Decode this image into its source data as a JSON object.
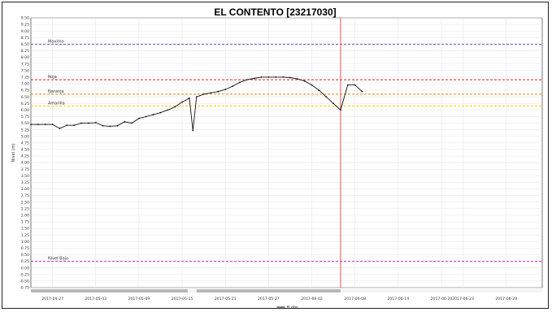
{
  "chart_data": {
    "type": "line",
    "title": "EL CONTENTO [23217030]",
    "ylabel": "Nivel (m)",
    "xlabel": "",
    "ylim": [
      -0.75,
      9.5
    ],
    "y_ticks": [
      "9.50",
      "9.25",
      "9.00",
      "8.75",
      "8.50",
      "8.25",
      "8.00",
      "7.75",
      "7.50",
      "7.25",
      "7.00",
      "6.75",
      "6.50",
      "6.25",
      "6.00",
      "5.75",
      "5.50",
      "5.25",
      "5.00",
      "4.75",
      "4.50",
      "4.25",
      "4.00",
      "3.75",
      "3.50",
      "3.25",
      "3.00",
      "2.75",
      "2.50",
      "2.25",
      "2.00",
      "1.75",
      "1.50",
      "1.25",
      "1.00",
      "0.75",
      "0.50",
      "0.25",
      "0.00",
      "-0.25",
      "-0.50",
      "-0.75"
    ],
    "xlim": [
      "2017-04-24",
      "2017-07-04"
    ],
    "x_ticks": [
      "2017-04-27",
      "2017-05-03",
      "2017-05-09",
      "2017-05-15",
      "2017-05-21",
      "2017-05-27",
      "2017-06-02",
      "2017-06-08",
      "2017-06-14",
      "2017-06-20",
      "2017-06-23",
      "2017-06-29"
    ],
    "grid": true,
    "legend_position": "bottom",
    "series": [
      {
        "name": "H.obs",
        "color": "#111111",
        "points": [
          [
            "2017-04-24",
            5.45
          ],
          [
            "2017-04-25",
            5.45
          ],
          [
            "2017-04-26",
            5.45
          ],
          [
            "2017-04-27",
            5.45
          ],
          [
            "2017-04-28",
            5.3
          ],
          [
            "2017-04-29",
            5.42
          ],
          [
            "2017-04-30",
            5.42
          ],
          [
            "2017-05-01",
            5.5
          ],
          [
            "2017-05-02",
            5.5
          ],
          [
            "2017-05-03",
            5.52
          ],
          [
            "2017-05-04",
            5.4
          ],
          [
            "2017-05-05",
            5.38
          ],
          [
            "2017-05-06",
            5.4
          ],
          [
            "2017-05-07",
            5.55
          ],
          [
            "2017-05-08",
            5.5
          ],
          [
            "2017-05-09",
            5.68
          ],
          [
            "2017-05-10",
            5.75
          ],
          [
            "2017-05-11",
            5.82
          ],
          [
            "2017-05-12",
            5.9
          ],
          [
            "2017-05-13",
            6.0
          ],
          [
            "2017-05-14",
            6.12
          ],
          [
            "2017-05-15",
            6.3
          ],
          [
            "2017-05-16",
            6.45
          ],
          [
            "2017-05-16.5",
            5.22
          ],
          [
            "2017-05-17",
            6.5
          ],
          [
            "2017-05-18",
            6.6
          ],
          [
            "2017-05-19",
            6.65
          ],
          [
            "2017-05-20",
            6.7
          ],
          [
            "2017-05-21",
            6.78
          ],
          [
            "2017-05-22",
            6.9
          ],
          [
            "2017-05-23",
            7.05
          ],
          [
            "2017-05-24",
            7.15
          ],
          [
            "2017-05-25",
            7.2
          ],
          [
            "2017-05-26",
            7.25
          ],
          [
            "2017-05-27",
            7.25
          ],
          [
            "2017-05-28",
            7.25
          ],
          [
            "2017-05-29",
            7.25
          ],
          [
            "2017-05-30",
            7.23
          ],
          [
            "2017-05-31",
            7.18
          ],
          [
            "2017-06-01",
            7.1
          ],
          [
            "2017-06-02",
            6.95
          ],
          [
            "2017-06-03",
            6.75
          ],
          [
            "2017-06-04",
            6.5
          ],
          [
            "2017-06-05",
            6.25
          ],
          [
            "2017-06-06",
            6.0
          ],
          [
            "2017-06-07",
            6.95
          ],
          [
            "2017-06-08",
            6.95
          ],
          [
            "2017-06-09",
            6.7
          ]
        ]
      }
    ],
    "reference_lines": [
      {
        "label": "Maximo",
        "y": 8.5,
        "color": "#5555cc"
      },
      {
        "label": "Roja",
        "y": 7.15,
        "color": "#e02020"
      },
      {
        "label": "Naranja",
        "y": 6.6,
        "color": "#e08a00"
      },
      {
        "label": "Amarilla",
        "y": 6.15,
        "color": "#e8d800"
      },
      {
        "label": "Nivel Bajo",
        "y": 0.25,
        "color": "#cc22cc"
      }
    ],
    "current_time_marker": {
      "x": "2017-06-06",
      "color": "#e04040"
    }
  }
}
